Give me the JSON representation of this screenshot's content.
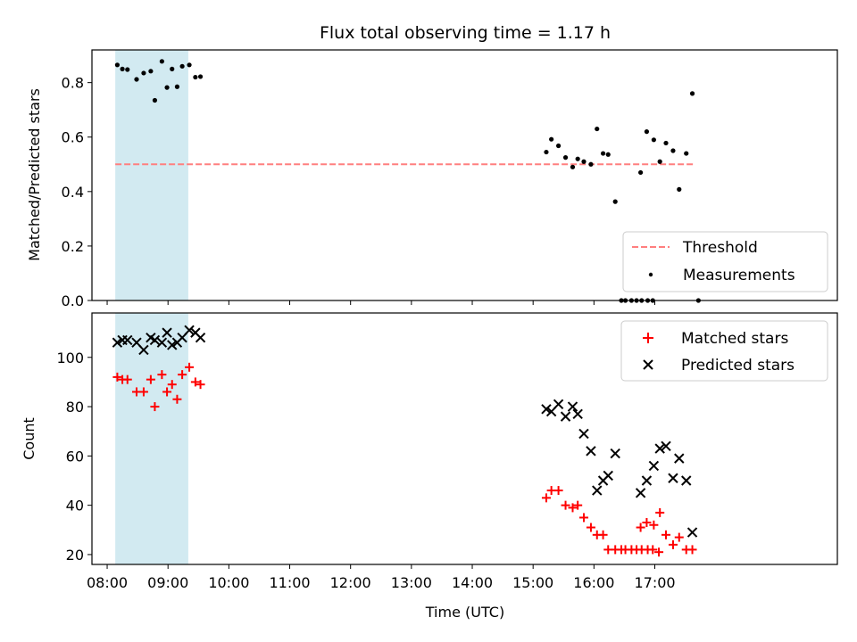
{
  "chart_data": [
    {
      "type": "scatter",
      "title": "Flux total observing time = 1.17 h",
      "ylabel": "Matched/Predicted stars",
      "xlim": [
        "07:45",
        "20:00"
      ],
      "ylim": [
        0,
        0.92
      ],
      "yticks": [
        "0.0",
        "0.2",
        "0.4",
        "0.6",
        "0.8"
      ],
      "shaded_span": [
        "08:08",
        "09:20"
      ],
      "shade_color": "#add8e6",
      "threshold": {
        "name": "Threshold",
        "value": 0.5,
        "x_range": [
          "08:08",
          "17:38"
        ],
        "color": "#ff7f7f"
      },
      "legend_location": "lower right",
      "series": [
        {
          "name": "Measurements",
          "marker": "point",
          "color": "#000000",
          "points": [
            [
              "08:10",
              0.865
            ],
            [
              "08:15",
              0.85
            ],
            [
              "08:20",
              0.848
            ],
            [
              "08:29",
              0.812
            ],
            [
              "08:36",
              0.835
            ],
            [
              "08:43",
              0.842
            ],
            [
              "08:47",
              0.735
            ],
            [
              "08:54",
              0.878
            ],
            [
              "08:59",
              0.782
            ],
            [
              "09:04",
              0.85
            ],
            [
              "09:09",
              0.785
            ],
            [
              "09:14",
              0.86
            ],
            [
              "09:21",
              0.865
            ],
            [
              "09:27",
              0.82
            ],
            [
              "09:32",
              0.822
            ],
            [
              "15:13",
              0.545
            ],
            [
              "15:18",
              0.592
            ],
            [
              "15:25",
              0.568
            ],
            [
              "15:32",
              0.525
            ],
            [
              "15:39",
              0.49
            ],
            [
              "15:44",
              0.52
            ],
            [
              "15:50",
              0.51
            ],
            [
              "15:57",
              0.5
            ],
            [
              "16:03",
              0.63
            ],
            [
              "16:09",
              0.54
            ],
            [
              "16:14",
              0.536
            ],
            [
              "16:21",
              0.363
            ],
            [
              "16:27",
              0.0
            ],
            [
              "16:31",
              0.0
            ],
            [
              "16:37",
              0.0
            ],
            [
              "16:42",
              0.0
            ],
            [
              "16:47",
              0.0
            ],
            [
              "16:53",
              0.0
            ],
            [
              "16:58",
              0.0
            ],
            [
              "16:46",
              0.47
            ],
            [
              "16:52",
              0.62
            ],
            [
              "16:59",
              0.59
            ],
            [
              "17:05",
              0.51
            ],
            [
              "17:11",
              0.578
            ],
            [
              "17:18",
              0.55
            ],
            [
              "17:24",
              0.408
            ],
            [
              "17:31",
              0.54
            ],
            [
              "17:37",
              0.76
            ],
            [
              "17:43",
              0.0
            ]
          ]
        }
      ]
    },
    {
      "type": "scatter",
      "xlabel": "Time (UTC)",
      "ylabel": "Count",
      "xlim": [
        "07:45",
        "20:00"
      ],
      "ylim": [
        16,
        118
      ],
      "yticks": [
        "20",
        "40",
        "60",
        "80",
        "100"
      ],
      "xticks": [
        "08:00",
        "09:00",
        "10:00",
        "11:00",
        "12:00",
        "13:00",
        "14:00",
        "15:00",
        "16:00",
        "17:00"
      ],
      "shaded_span": [
        "08:08",
        "09:20"
      ],
      "legend_location": "upper right",
      "series": [
        {
          "name": "Matched stars",
          "marker": "+",
          "color": "#ff0000",
          "points": [
            [
              "08:10",
              92
            ],
            [
              "08:15",
              91
            ],
            [
              "08:20",
              91
            ],
            [
              "08:29",
              86
            ],
            [
              "08:36",
              86
            ],
            [
              "08:43",
              91
            ],
            [
              "08:47",
              80
            ],
            [
              "08:54",
              93
            ],
            [
              "08:59",
              86
            ],
            [
              "09:04",
              89
            ],
            [
              "09:09",
              83
            ],
            [
              "09:14",
              93
            ],
            [
              "09:21",
              96
            ],
            [
              "09:27",
              90
            ],
            [
              "09:32",
              89
            ],
            [
              "15:13",
              43
            ],
            [
              "15:18",
              46
            ],
            [
              "15:25",
              46
            ],
            [
              "15:32",
              40
            ],
            [
              "15:39",
              39
            ],
            [
              "15:44",
              40
            ],
            [
              "15:50",
              35
            ],
            [
              "15:57",
              31
            ],
            [
              "16:03",
              28
            ],
            [
              "16:09",
              28
            ],
            [
              "16:14",
              22
            ],
            [
              "16:21",
              22
            ],
            [
              "16:27",
              22
            ],
            [
              "16:31",
              22
            ],
            [
              "16:37",
              22
            ],
            [
              "16:42",
              22
            ],
            [
              "16:47",
              22
            ],
            [
              "16:53",
              22
            ],
            [
              "16:58",
              22
            ],
            [
              "17:04",
              21
            ],
            [
              "16:46",
              31
            ],
            [
              "16:52",
              33
            ],
            [
              "16:59",
              32
            ],
            [
              "17:05",
              37
            ],
            [
              "17:11",
              28
            ],
            [
              "17:18",
              24
            ],
            [
              "17:24",
              27
            ],
            [
              "17:31",
              22
            ],
            [
              "17:37",
              22
            ]
          ]
        },
        {
          "name": "Predicted stars",
          "marker": "x",
          "color": "#000000",
          "points": [
            [
              "08:10",
              106
            ],
            [
              "08:15",
              107
            ],
            [
              "08:20",
              107
            ],
            [
              "08:29",
              106
            ],
            [
              "08:36",
              103
            ],
            [
              "08:43",
              108
            ],
            [
              "08:47",
              107
            ],
            [
              "08:54",
              106
            ],
            [
              "08:59",
              110
            ],
            [
              "09:04",
              105
            ],
            [
              "09:09",
              106
            ],
            [
              "09:14",
              108
            ],
            [
              "09:21",
              111
            ],
            [
              "09:27",
              110
            ],
            [
              "09:32",
              108
            ],
            [
              "15:13",
              79
            ],
            [
              "15:18",
              78
            ],
            [
              "15:25",
              81
            ],
            [
              "15:32",
              76
            ],
            [
              "15:39",
              80
            ],
            [
              "15:44",
              77
            ],
            [
              "15:50",
              69
            ],
            [
              "15:57",
              62
            ],
            [
              "16:03",
              46
            ],
            [
              "16:09",
              50
            ],
            [
              "16:14",
              52
            ],
            [
              "16:21",
              61
            ],
            [
              "16:46",
              45
            ],
            [
              "16:52",
              50
            ],
            [
              "16:59",
              56
            ],
            [
              "17:05",
              63
            ],
            [
              "17:11",
              64
            ],
            [
              "17:18",
              51
            ],
            [
              "17:24",
              59
            ],
            [
              "17:31",
              50
            ],
            [
              "17:37",
              29
            ]
          ]
        }
      ]
    }
  ]
}
